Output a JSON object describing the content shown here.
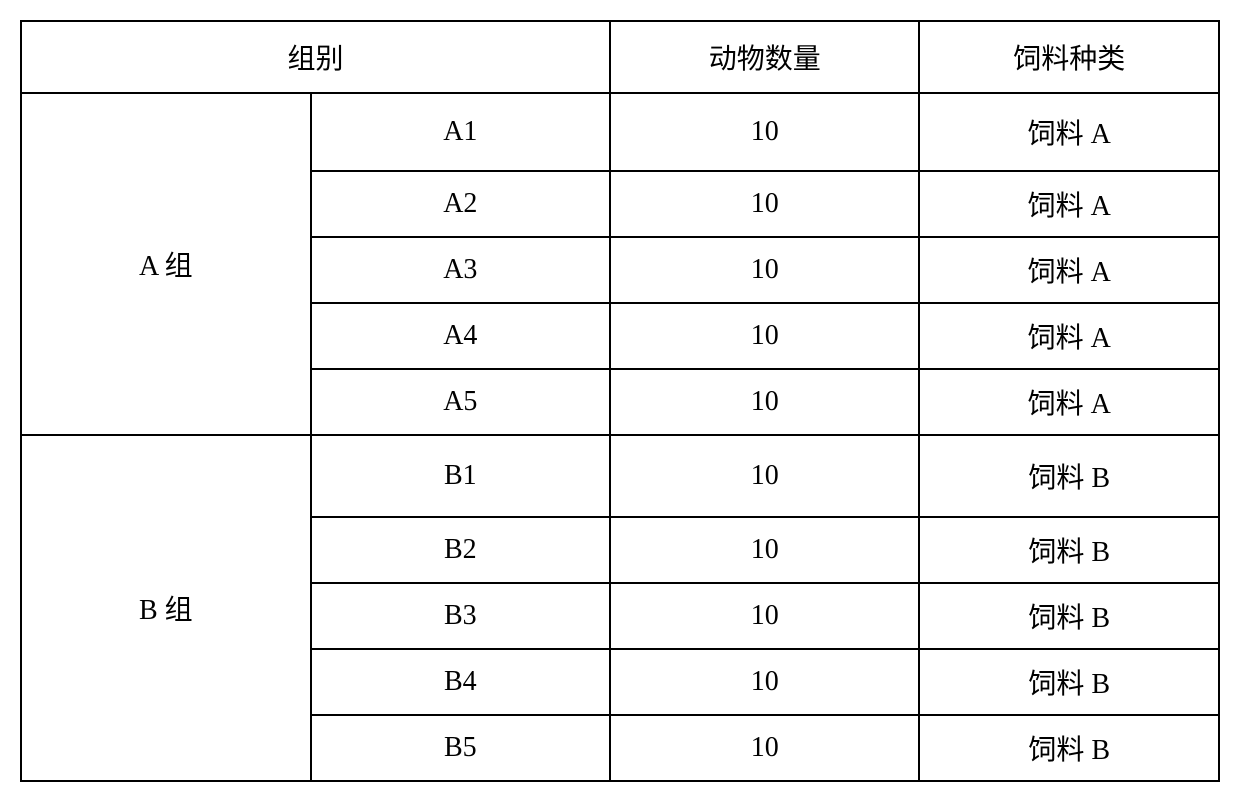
{
  "table": {
    "headers": {
      "group": "组别",
      "animal_count": "动物数量",
      "feed_type": "饲料种类"
    },
    "groups": [
      {
        "name": "A 组",
        "rows": [
          {
            "sub": "A1",
            "count": "10",
            "feed": "饲料 A"
          },
          {
            "sub": "A2",
            "count": "10",
            "feed": "饲料 A"
          },
          {
            "sub": "A3",
            "count": "10",
            "feed": "饲料 A"
          },
          {
            "sub": "A4",
            "count": "10",
            "feed": "饲料 A"
          },
          {
            "sub": "A5",
            "count": "10",
            "feed": "饲料 A"
          }
        ]
      },
      {
        "name": "B 组",
        "rows": [
          {
            "sub": "B1",
            "count": "10",
            "feed": "饲料 B"
          },
          {
            "sub": "B2",
            "count": "10",
            "feed": "饲料 B"
          },
          {
            "sub": "B3",
            "count": "10",
            "feed": "饲料 B"
          },
          {
            "sub": "B4",
            "count": "10",
            "feed": "饲料 B"
          },
          {
            "sub": "B5",
            "count": "10",
            "feed": "饲料 B"
          }
        ]
      }
    ]
  },
  "styling": {
    "border_color": "#000000",
    "background_color": "#ffffff",
    "text_color": "#000000",
    "font_size": 28,
    "border_width": 2
  }
}
